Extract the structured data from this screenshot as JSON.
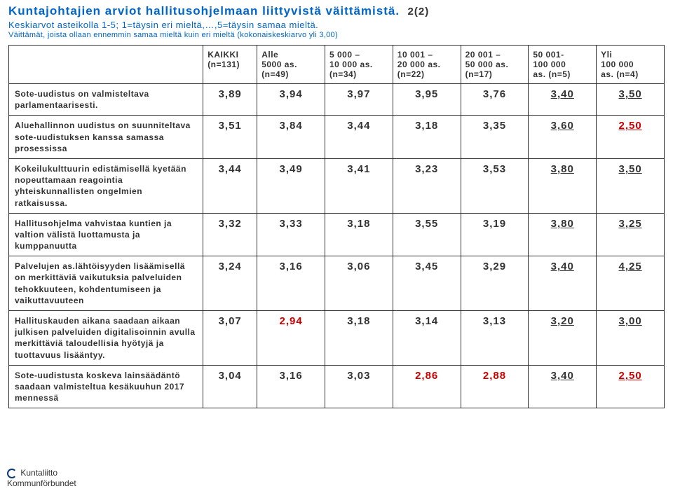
{
  "header": {
    "title_main": "Kuntajohtajien arviot hallitusohjelmaan liittyvistä väittämistä.",
    "title_suffix": "2(2)",
    "subtitle": "Keskiarvot  asteikolla 1-5; 1=täysin eri mieltä,…,5=täysin samaa mieltä.",
    "note": "Väittämät, joista ollaan ennemmin samaa mieltä kuin eri mieltä (kokonaiskeskiarvo yli 3,00)"
  },
  "columns": [
    {
      "line1": "KAIKKI",
      "line2": "",
      "line3": "(n=131)"
    },
    {
      "line1": "Alle",
      "line2": "5000 as.",
      "line3": "(n=49)"
    },
    {
      "line1": "5 000 –",
      "line2": "10 000 as.",
      "line3": "(n=34)"
    },
    {
      "line1": "10 001 –",
      "line2": "20 000 as.",
      "line3": "(n=22)"
    },
    {
      "line1": "20 001 –",
      "line2": "50 000 as.",
      "line3": "(n=17)"
    },
    {
      "line1": "50 001-",
      "line2": "100 000",
      "line3": "as. (n=5)"
    },
    {
      "line1": "Yli",
      "line2": "100 000",
      "line3": "as. (n=4)"
    }
  ],
  "row_label_color": "#333333",
  "threshold": 3.0,
  "colors": {
    "above": "#333333",
    "below": "#cc0000",
    "underline_cols": [
      5,
      6
    ]
  },
  "rows": [
    {
      "label": "Sote-uudistus on valmisteltava parlamentaarisesti.",
      "values": [
        "3,89",
        "3,94",
        "3,97",
        "3,95",
        "3,76",
        "3,40",
        "3,50"
      ]
    },
    {
      "label": "Aluehallinnon uudistus on suunniteltava sote-uudistuksen kanssa samassa prosessissa",
      "values": [
        "3,51",
        "3,84",
        "3,44",
        "3,18",
        "3,35",
        "3,60",
        "2,50"
      ]
    },
    {
      "label": "Kokeilukulttuurin edistämisellä kyetään nopeuttamaan reagointia yhteiskunnallisten ongelmien ratkaisussa.",
      "values": [
        "3,44",
        "3,49",
        "3,41",
        "3,23",
        "3,53",
        "3,80",
        "3,50"
      ]
    },
    {
      "label": "Hallitusohjelma vahvistaa kuntien ja valtion välistä luottamusta ja kumppanuutta",
      "values": [
        "3,32",
        "3,33",
        "3,18",
        "3,55",
        "3,19",
        "3,80",
        "3,25"
      ]
    },
    {
      "label": "Palvelujen as.lähtöisyyden lisäämisellä on merkittäviä vaikutuksia palveluiden tehokkuuteen, kohdentumiseen ja vaikuttavuuteen",
      "values": [
        "3,24",
        "3,16",
        "3,06",
        "3,45",
        "3,29",
        "3,40",
        "4,25"
      ]
    },
    {
      "label": "Hallituskauden aikana saadaan aikaan julkisen palveluiden digitalisoinnin avulla merkittäviä taloudellisia hyötyjä ja tuottavuus lisääntyy.",
      "values": [
        "3,07",
        "2,94",
        "3,18",
        "3,14",
        "3,13",
        "3,20",
        "3,00"
      ]
    },
    {
      "label": "Sote-uudistusta koskeva lainsäädäntö saadaan valmisteltua kesäkuuhun 2017 mennessä",
      "values": [
        "3,04",
        "3,16",
        "3,03",
        "2,86",
        "2,88",
        "3,40",
        "2,50"
      ]
    }
  ],
  "footer": {
    "line1": "Kuntaliitto",
    "line2": "Kommunförbundet"
  }
}
